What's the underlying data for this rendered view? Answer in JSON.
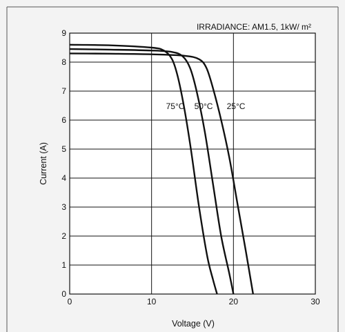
{
  "chart_data": {
    "type": "line",
    "title": "",
    "xlabel": "Voltage (V)",
    "ylabel": "Current  (A)",
    "xlim": [
      0,
      30
    ],
    "ylim": [
      0,
      9
    ],
    "x_ticks": [
      "0",
      "10",
      "20",
      "30"
    ],
    "y_ticks": [
      "0",
      "1",
      "2",
      "3",
      "4",
      "5",
      "6",
      "7",
      "8",
      "9"
    ],
    "grid": true,
    "annotation": "IRRADIANCE: AM1.5, 1kW/ m²",
    "series": [
      {
        "name": "75°C",
        "x": [
          0,
          5,
          10,
          11.5,
          12.5,
          13.2,
          14.0,
          14.8,
          15.8,
          16.8,
          17.5,
          18.0
        ],
        "y": [
          8.6,
          8.58,
          8.5,
          8.4,
          8.1,
          7.5,
          6.4,
          5.0,
          3.0,
          1.3,
          0.5,
          0
        ]
      },
      {
        "name": "50°C",
        "x": [
          0,
          5,
          10,
          12.5,
          13.8,
          14.7,
          15.5,
          16.5,
          17.5,
          18.5,
          19.5,
          20.0
        ],
        "y": [
          8.45,
          8.43,
          8.4,
          8.35,
          8.2,
          7.8,
          7.0,
          5.6,
          3.8,
          2.0,
          0.7,
          0
        ]
      },
      {
        "name": "25°C",
        "x": [
          0,
          5,
          10,
          14.0,
          15.8,
          16.7,
          17.5,
          18.5,
          19.5,
          20.5,
          21.5,
          22.4
        ],
        "y": [
          8.3,
          8.29,
          8.27,
          8.22,
          8.1,
          7.8,
          7.1,
          6.0,
          4.7,
          3.1,
          1.5,
          0
        ]
      }
    ]
  }
}
